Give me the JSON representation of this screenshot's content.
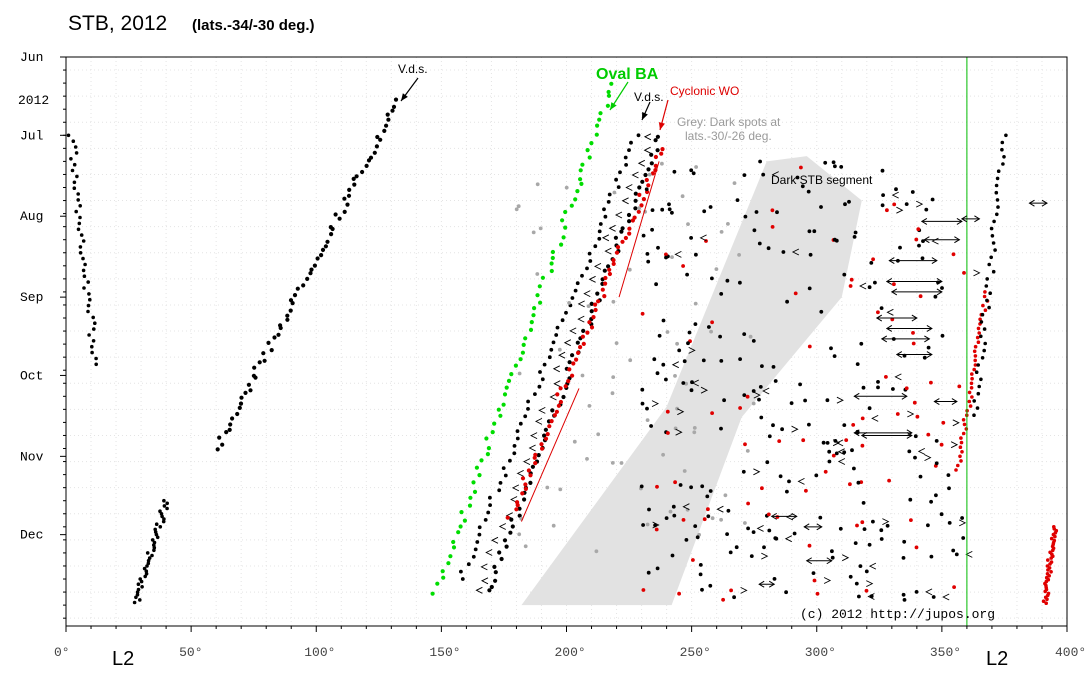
{
  "chart_data": {
    "type": "scatter",
    "title": "STB, 2012",
    "subtitle": "(lats.-34/-30 deg.)",
    "xlabel_left": "L2",
    "xlabel_right": "L2",
    "xlim": [
      0,
      400
    ],
    "x_ticks": [
      "0°",
      "50°",
      "100°",
      "150°",
      "200°",
      "250°",
      "300°",
      "350°",
      "400°"
    ],
    "x_tick_values": [
      0,
      50,
      100,
      150,
      200,
      250,
      300,
      350,
      400
    ],
    "y_month_labels": [
      "Jun",
      "Jul",
      "Aug",
      "Sep",
      "Oct",
      "Nov",
      "Dec"
    ],
    "y_month_days": [
      0,
      30,
      61,
      92,
      122,
      153,
      183
    ],
    "year_label": "2012",
    "ylim_days": [
      0,
      218
    ],
    "reference_line_L2": 360,
    "credit": "(c) 2012 http://jupos.org",
    "annotations": {
      "vds1": "V.d.s.",
      "oval_ba": "Oval BA",
      "vds2": "V.d.s.",
      "cyclonic_wo": "Cyclonic WO",
      "grey_note_1": "Grey: Dark spots at",
      "grey_note_2": "lats.-30/-26 deg.",
      "dark_segment": "Dark STB segment"
    },
    "colors": {
      "black_spots": "#000000",
      "oval_ba": "#00dd00",
      "cyclonic": "#e00000",
      "grey_spots": "#a8a8a8",
      "segment_fill": "#e2e2e2",
      "ref_line": "#00bb00",
      "frame": "#000000"
    },
    "series": [
      {
        "name": "Oval BA",
        "color": "#00dd00",
        "start": [
          148,
          205
        ],
        "end": [
          219,
          10
        ]
      },
      {
        "name": "V.d.s.",
        "color": "#000000",
        "start": [
          168,
          205
        ],
        "end": [
          237,
          30
        ]
      },
      {
        "name": "V.d.s.",
        "color": "#000000",
        "start": [
          60,
          150
        ],
        "end": [
          133,
          17
        ]
      },
      {
        "name": "Cyclonic WO",
        "color": "#e00000",
        "start": [
          178,
          176
        ],
        "end": [
          238,
          35
        ]
      }
    ],
    "segment_polygon": [
      [
        182,
        210
      ],
      [
        240,
        134
      ],
      [
        280,
        40
      ],
      [
        296,
        38
      ],
      [
        318,
        55
      ],
      [
        310,
        92
      ],
      [
        270,
        138
      ],
      [
        242,
        210
      ]
    ],
    "arrows_note": "double-headed arrows mark spans of the dark STB segment"
  }
}
